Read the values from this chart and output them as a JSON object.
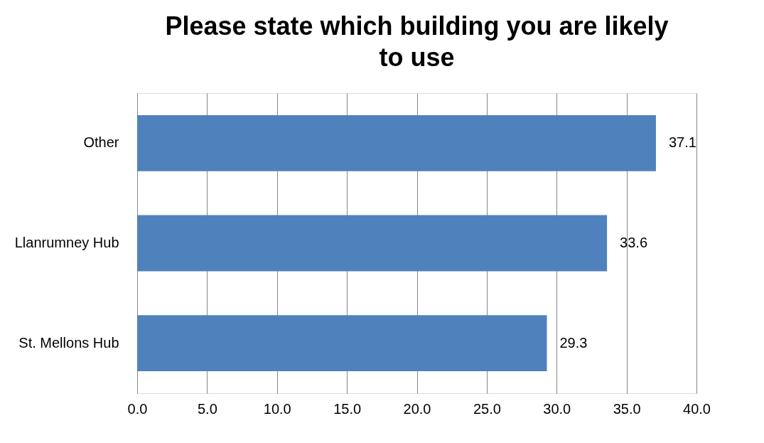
{
  "chart_data": {
    "type": "bar",
    "orientation": "horizontal",
    "title": "Please state which building you are likely to use",
    "categories": [
      "Other",
      "Llanrumney Hub",
      "St. Mellons Hub"
    ],
    "values": [
      37.1,
      33.6,
      29.3
    ],
    "color": "#4f81bd",
    "xlim": [
      0,
      40
    ],
    "xticks": [
      {
        "value": 0,
        "label": "0.0"
      },
      {
        "value": 5,
        "label": "5.0"
      },
      {
        "value": 10,
        "label": "10.0"
      },
      {
        "value": 15,
        "label": "15.0"
      },
      {
        "value": 20,
        "label": "20.0"
      },
      {
        "value": 25,
        "label": "25.0"
      },
      {
        "value": 30,
        "label": "30.0"
      },
      {
        "value": 35,
        "label": "35.0"
      },
      {
        "value": 40,
        "label": "40.0"
      }
    ],
    "grid": "x",
    "data_labels": true
  }
}
